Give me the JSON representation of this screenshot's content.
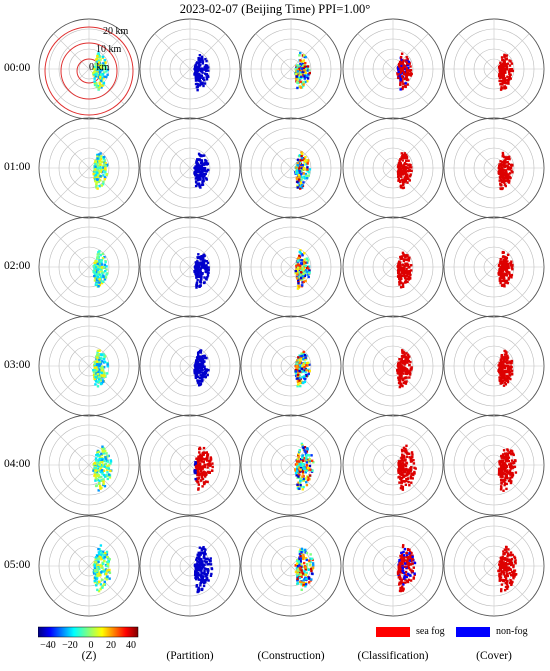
{
  "title": "2023-02-07 (Beijing Time) PPI=1.00°",
  "chart_data": {
    "type": "polar radar PPI panel grid",
    "rows": [
      "00:00",
      "01:00",
      "02:00",
      "03:00",
      "04:00",
      "05:00"
    ],
    "columns": [
      "(Z)",
      "(Partition)",
      "(Construction)",
      "(Classification)",
      "(Cover)"
    ],
    "range_rings_labels": [
      "20 km",
      "10 km",
      "0 km"
    ],
    "colorbar": {
      "ticks": [
        "−40",
        "−20",
        "0",
        "20",
        "40"
      ],
      "colormap": "jet"
    },
    "legend": [
      {
        "label": "sea fog",
        "color": "#ff0000"
      },
      {
        "label": "non-fog",
        "color": "#0000ff"
      }
    ],
    "grid": true
  }
}
